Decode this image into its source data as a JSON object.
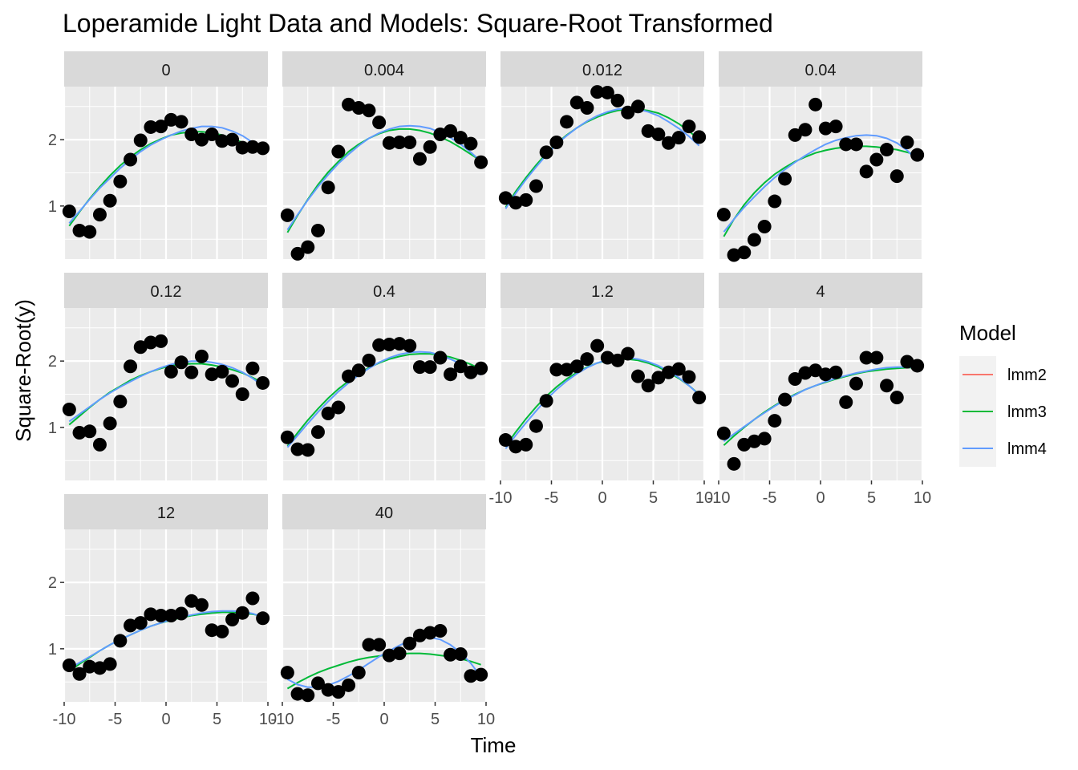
{
  "chart_data": {
    "type": "scatter",
    "title": "Loperamide Light Data and Models: Square-Root Transformed",
    "xlabel": "Time",
    "ylabel": "Square-Root(y)",
    "xlim": [
      -10,
      10
    ],
    "ylim": [
      0.2,
      2.8
    ],
    "x_ticks": [
      -10,
      -5,
      0,
      5,
      10
    ],
    "x_tick_labels": [
      "-10",
      "-5",
      "0",
      "5",
      "10"
    ],
    "y_ticks": [
      1,
      2
    ],
    "y_tick_labels": [
      "1",
      "2"
    ],
    "grid": true,
    "x": [
      -9.5,
      -8.5,
      -7.5,
      -6.5,
      -5.5,
      -4.5,
      -3.5,
      -2.5,
      -1.5,
      -0.5,
      0.5,
      1.5,
      2.5,
      3.5,
      4.5,
      5.5,
      6.5,
      7.5,
      8.5,
      9.5
    ],
    "legend": {
      "title": "Model",
      "position": "right",
      "entries": [
        {
          "label": "lmm2",
          "color": "#F8766D"
        },
        {
          "label": "lmm3",
          "color": "#00BA38"
        },
        {
          "label": "lmm4",
          "color": "#619CFF"
        }
      ]
    },
    "panels": [
      {
        "label": "0",
        "points": [
          0.92,
          0.63,
          0.61,
          0.87,
          1.08,
          1.37,
          1.7,
          1.99,
          2.19,
          2.2,
          2.3,
          2.27,
          2.08,
          2.0,
          2.08,
          1.98,
          2.0,
          1.88,
          1.89,
          1.87
        ],
        "lmm3": [
          0.7,
          0.91,
          1.11,
          1.29,
          1.46,
          1.61,
          1.74,
          1.85,
          1.94,
          2.01,
          2.07,
          2.1,
          2.12,
          2.12,
          2.1,
          2.07,
          2.02,
          1.96,
          1.88,
          1.8
        ],
        "lmm4": [
          0.74,
          0.92,
          1.1,
          1.27,
          1.42,
          1.57,
          1.7,
          1.82,
          1.92,
          2.0,
          2.07,
          2.13,
          2.17,
          2.2,
          2.2,
          2.18,
          2.13,
          2.06,
          1.96,
          1.82
        ]
      },
      {
        "label": "0.004",
        "points": [
          0.86,
          0.28,
          0.38,
          0.63,
          1.28,
          1.82,
          2.53,
          2.48,
          2.44,
          2.26,
          1.95,
          1.96,
          1.96,
          1.71,
          1.89,
          2.08,
          2.13,
          2.03,
          1.94,
          1.66
        ],
        "lmm3": [
          0.6,
          0.86,
          1.1,
          1.32,
          1.51,
          1.67,
          1.82,
          1.93,
          2.02,
          2.09,
          2.14,
          2.16,
          2.16,
          2.14,
          2.1,
          2.04,
          1.97,
          1.88,
          1.78,
          1.68
        ],
        "lmm4": [
          0.64,
          0.87,
          1.09,
          1.29,
          1.47,
          1.64,
          1.78,
          1.91,
          2.02,
          2.1,
          2.16,
          2.2,
          2.21,
          2.2,
          2.17,
          2.11,
          2.03,
          1.93,
          1.81,
          1.67
        ]
      },
      {
        "label": "0.012",
        "points": [
          1.12,
          1.05,
          1.09,
          1.3,
          1.81,
          1.96,
          2.27,
          2.56,
          2.48,
          2.72,
          2.71,
          2.59,
          2.41,
          2.5,
          2.13,
          2.08,
          1.95,
          2.03,
          2.2,
          2.04
        ],
        "lmm3": [
          0.98,
          1.22,
          1.43,
          1.62,
          1.79,
          1.94,
          2.07,
          2.18,
          2.27,
          2.34,
          2.4,
          2.44,
          2.46,
          2.46,
          2.44,
          2.4,
          2.33,
          2.24,
          2.13,
          2.0
        ],
        "lmm4": [
          0.96,
          1.19,
          1.4,
          1.59,
          1.77,
          1.93,
          2.06,
          2.18,
          2.28,
          2.36,
          2.42,
          2.46,
          2.47,
          2.46,
          2.42,
          2.36,
          2.27,
          2.17,
          2.05,
          1.91
        ]
      },
      {
        "label": "0.04",
        "points": [
          0.87,
          0.26,
          0.3,
          0.49,
          0.69,
          1.07,
          1.41,
          2.07,
          2.15,
          2.53,
          2.17,
          2.2,
          1.93,
          1.93,
          1.52,
          1.7,
          1.85,
          1.45,
          1.96,
          1.77
        ],
        "lmm3": [
          0.54,
          0.8,
          1.02,
          1.2,
          1.35,
          1.48,
          1.58,
          1.67,
          1.74,
          1.8,
          1.84,
          1.87,
          1.89,
          1.9,
          1.9,
          1.89,
          1.87,
          1.85,
          1.81,
          1.77
        ],
        "lmm4": [
          0.61,
          0.8,
          0.98,
          1.14,
          1.29,
          1.43,
          1.55,
          1.66,
          1.76,
          1.85,
          1.93,
          1.99,
          2.03,
          2.06,
          2.07,
          2.06,
          2.02,
          1.95,
          1.84,
          1.68
        ]
      },
      {
        "label": "0.12",
        "points": [
          1.27,
          0.92,
          0.94,
          0.74,
          1.06,
          1.39,
          1.92,
          2.21,
          2.28,
          2.3,
          1.84,
          1.98,
          1.83,
          2.07,
          1.8,
          1.84,
          1.7,
          1.5,
          1.89,
          1.67
        ],
        "lmm3": [
          1.04,
          1.17,
          1.3,
          1.42,
          1.53,
          1.62,
          1.71,
          1.78,
          1.84,
          1.89,
          1.93,
          1.95,
          1.96,
          1.96,
          1.94,
          1.91,
          1.87,
          1.82,
          1.75,
          1.67
        ],
        "lmm4": [
          1.09,
          1.2,
          1.31,
          1.42,
          1.52,
          1.61,
          1.69,
          1.77,
          1.84,
          1.9,
          1.95,
          1.98,
          2.0,
          2.0,
          1.98,
          1.95,
          1.9,
          1.83,
          1.74,
          1.63
        ]
      },
      {
        "label": "0.4",
        "points": [
          0.85,
          0.67,
          0.66,
          0.93,
          1.21,
          1.3,
          1.77,
          1.86,
          2.01,
          2.24,
          2.25,
          2.26,
          2.23,
          1.91,
          1.91,
          2.05,
          1.8,
          1.92,
          1.83,
          1.89
        ],
        "lmm3": [
          0.72,
          0.92,
          1.11,
          1.28,
          1.44,
          1.58,
          1.7,
          1.81,
          1.9,
          1.97,
          2.03,
          2.07,
          2.1,
          2.11,
          2.11,
          2.09,
          2.06,
          2.01,
          1.95,
          1.88
        ],
        "lmm4": [
          0.7,
          0.88,
          1.06,
          1.23,
          1.39,
          1.54,
          1.67,
          1.79,
          1.89,
          1.98,
          2.05,
          2.1,
          2.13,
          2.14,
          2.13,
          2.09,
          2.03,
          1.96,
          1.87,
          1.79
        ]
      },
      {
        "label": "1.2",
        "points": [
          0.81,
          0.71,
          0.74,
          1.02,
          1.4,
          1.87,
          1.87,
          1.92,
          2.03,
          2.23,
          2.05,
          2.01,
          2.11,
          1.77,
          1.63,
          1.75,
          1.83,
          1.88,
          1.76,
          1.45
        ],
        "lmm3": [
          0.72,
          0.93,
          1.13,
          1.31,
          1.47,
          1.61,
          1.73,
          1.83,
          1.91,
          1.97,
          2.01,
          2.03,
          2.03,
          2.01,
          1.97,
          1.91,
          1.83,
          1.74,
          1.63,
          1.5
        ],
        "lmm4": [
          0.68,
          0.88,
          1.07,
          1.25,
          1.42,
          1.57,
          1.7,
          1.81,
          1.9,
          1.97,
          2.02,
          2.04,
          2.05,
          2.03,
          1.99,
          1.93,
          1.85,
          1.75,
          1.63,
          1.49
        ]
      },
      {
        "label": "4",
        "points": [
          0.91,
          0.45,
          0.74,
          0.79,
          0.83,
          1.1,
          1.42,
          1.73,
          1.82,
          1.86,
          1.8,
          1.83,
          1.38,
          1.66,
          2.05,
          2.05,
          1.63,
          1.45,
          1.99,
          1.93
        ],
        "lmm3": [
          0.73,
          0.87,
          1.0,
          1.12,
          1.23,
          1.33,
          1.42,
          1.5,
          1.57,
          1.63,
          1.68,
          1.73,
          1.77,
          1.81,
          1.84,
          1.86,
          1.88,
          1.89,
          1.9,
          1.9
        ],
        "lmm4": [
          0.79,
          0.9,
          1.01,
          1.12,
          1.22,
          1.32,
          1.41,
          1.49,
          1.57,
          1.63,
          1.69,
          1.74,
          1.78,
          1.82,
          1.85,
          1.88,
          1.9,
          1.91,
          1.91,
          1.9
        ]
      },
      {
        "label": "12",
        "points": [
          0.75,
          0.62,
          0.73,
          0.71,
          0.77,
          1.12,
          1.35,
          1.39,
          1.52,
          1.5,
          1.5,
          1.53,
          1.72,
          1.66,
          1.28,
          1.26,
          1.44,
          1.54,
          1.76,
          1.46
        ],
        "lmm3": [
          0.66,
          0.77,
          0.87,
          0.97,
          1.06,
          1.14,
          1.21,
          1.28,
          1.34,
          1.39,
          1.43,
          1.47,
          1.5,
          1.52,
          1.54,
          1.55,
          1.55,
          1.54,
          1.52,
          1.49
        ],
        "lmm4": [
          0.7,
          0.79,
          0.88,
          0.97,
          1.06,
          1.14,
          1.21,
          1.28,
          1.34,
          1.39,
          1.44,
          1.48,
          1.51,
          1.54,
          1.56,
          1.57,
          1.57,
          1.56,
          1.53,
          1.48
        ]
      },
      {
        "label": "40",
        "points": [
          0.64,
          0.32,
          0.3,
          0.48,
          0.38,
          0.35,
          0.45,
          0.64,
          1.06,
          1.06,
          0.9,
          0.93,
          1.08,
          1.2,
          1.24,
          1.27,
          0.91,
          0.92,
          0.59,
          0.61
        ],
        "lmm3": [
          0.4,
          0.49,
          0.57,
          0.64,
          0.7,
          0.75,
          0.8,
          0.84,
          0.87,
          0.89,
          0.91,
          0.92,
          0.93,
          0.93,
          0.92,
          0.9,
          0.88,
          0.85,
          0.81,
          0.76
        ],
        "lmm4": [
          0.54,
          0.46,
          0.42,
          0.42,
          0.45,
          0.51,
          0.59,
          0.68,
          0.78,
          0.88,
          0.97,
          1.05,
          1.12,
          1.16,
          1.17,
          1.14,
          1.06,
          0.94,
          0.78,
          0.58
        ]
      }
    ]
  }
}
